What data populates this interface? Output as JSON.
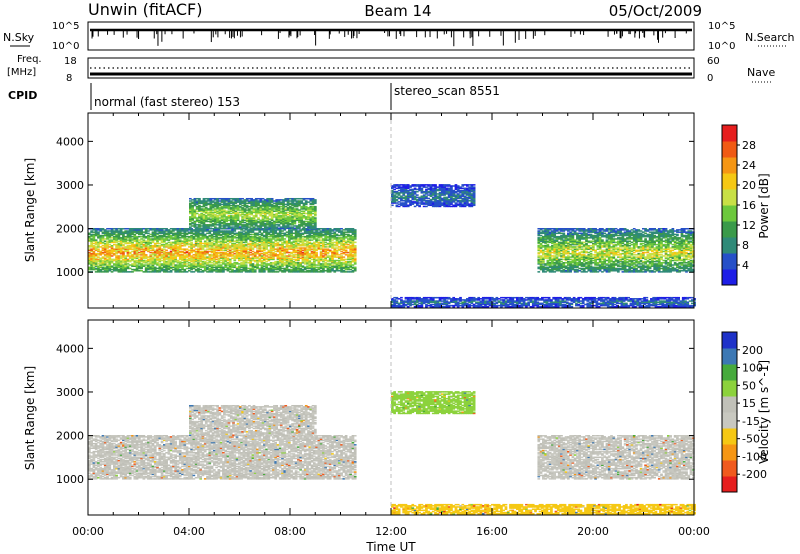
{
  "header": {
    "station": "Unwin (fitACF)",
    "beam": "Beam 14",
    "date": "05/Oct/2009"
  },
  "sky_panel": {
    "left_label": "N.Sky",
    "right_label": "N.Search",
    "ticks": [
      "10^5",
      "10^0"
    ]
  },
  "freq_panel": {
    "left_label_1": "Freq.",
    "left_label_2": "[MHz]",
    "left_ticks": [
      "18",
      "8"
    ],
    "right_label": "Nave",
    "right_ticks": [
      "60",
      "0"
    ]
  },
  "cpid_panel": {
    "label": "CPID",
    "mode_1": "normal (fast stereo) 153",
    "mode_2": "stereo_scan 8551"
  },
  "axes": {
    "ylabel": "Slant Range [km]",
    "xlabel": "Time UT",
    "x_ticks": [
      "00:00",
      "04:00",
      "08:00",
      "12:00",
      "16:00",
      "20:00",
      "00:00"
    ],
    "y_ticks": [
      "1000",
      "2000",
      "3000",
      "4000"
    ]
  },
  "colors": {
    "power": [
      "#1e1ee6",
      "#2650c8",
      "#2f8a78",
      "#3a9a4a",
      "#6cc83c",
      "#c8e046",
      "#f5c814",
      "#f59614",
      "#f05a14",
      "#e61e1e"
    ],
    "velocity": [
      "#e61e1e",
      "#f05a1e",
      "#f59614",
      "#f5c814",
      "#c8c8c0",
      "#c0c0b8",
      "#8cd23c",
      "#46aa3c",
      "#3c78b4",
      "#1e32c8"
    ],
    "mode_line": "#bfbfbf"
  },
  "chart_data": [
    {
      "type": "heatmap",
      "title": "",
      "xlabel": "",
      "ylabel": "Slant Range [km]",
      "xlim": [
        0,
        24
      ],
      "ylim": [
        180,
        4650
      ],
      "colorbar": {
        "label": "Power [dB]",
        "ticks": [
          "4",
          "8",
          "12",
          "16",
          "20",
          "24",
          "28"
        ],
        "range": [
          0,
          30
        ]
      },
      "echo_bands": [
        {
          "t_start": 0.0,
          "t_end": 10.6,
          "range_km": [
            1000,
            2000
          ],
          "level_db": 17,
          "peak_db": 27
        },
        {
          "t_start": 4.0,
          "t_end": 9.0,
          "range_km": [
            2000,
            2700
          ],
          "level_db": 14,
          "peak_db": 18
        },
        {
          "t_start": 12.0,
          "t_end": 15.3,
          "range_km": [
            2500,
            3000
          ],
          "level_db": 6,
          "peak_db": 8
        },
        {
          "t_start": 17.8,
          "t_end": 24.0,
          "range_km": [
            1000,
            2000
          ],
          "level_db": 13,
          "peak_db": 22
        },
        {
          "t_start": 12.0,
          "t_end": 24.0,
          "range_km": [
            200,
            420
          ],
          "level_db": 5,
          "peak_db": 8
        }
      ]
    },
    {
      "type": "heatmap",
      "title": "",
      "xlabel": "Time UT",
      "ylabel": "Slant Range [km]",
      "xlim": [
        0,
        24
      ],
      "ylim": [
        180,
        4650
      ],
      "colorbar": {
        "label": "Velocity [m s^-1]",
        "ticks": [
          "-200",
          "-100",
          "-50",
          "-15",
          "15",
          "50",
          "100",
          "200"
        ],
        "range": [
          -250,
          250
        ]
      },
      "echo_bands": [
        {
          "t_start": 0.0,
          "t_end": 10.6,
          "range_km": [
            1000,
            2000
          ],
          "velocity_ms": 0
        },
        {
          "t_start": 4.0,
          "t_end": 9.0,
          "range_km": [
            2000,
            2700
          ],
          "velocity_ms": 0
        },
        {
          "t_start": 12.0,
          "t_end": 15.3,
          "range_km": [
            2500,
            3000
          ],
          "velocity_ms": 30
        },
        {
          "t_start": 17.8,
          "t_end": 24.0,
          "range_km": [
            1000,
            2000
          ],
          "velocity_ms": 0
        },
        {
          "t_start": 12.0,
          "t_end": 24.0,
          "range_km": [
            200,
            420
          ],
          "velocity_ms": -30
        }
      ]
    }
  ]
}
